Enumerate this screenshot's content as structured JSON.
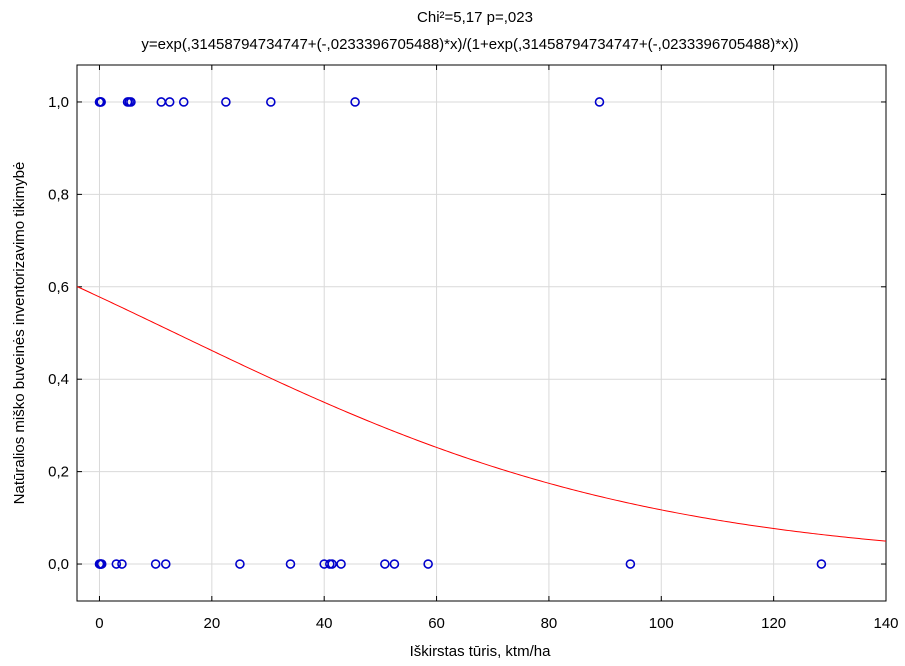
{
  "chart_data": {
    "type": "scatter",
    "title": "Chi²=5,17 p=,023",
    "subtitle": "y=exp(,31458794734747+(-,0233396705488)*x)/(1+exp(,31458794734747+(-,0233396705488)*x))",
    "xlabel": "Iškirstas tūris, ktm/ha",
    "ylabel": "Natūralios miško buveinės inventorizavimo tikimybė",
    "xlim": [
      -4,
      140
    ],
    "ylim": [
      -0.08,
      1.08
    ],
    "x_ticks": [
      0,
      20,
      40,
      60,
      80,
      100,
      120,
      140
    ],
    "x_tick_labels": [
      "0",
      "20",
      "40",
      "60",
      "80",
      "100",
      "120",
      "140"
    ],
    "y_ticks": [
      0.0,
      0.2,
      0.4,
      0.6,
      0.8,
      1.0
    ],
    "y_tick_labels": [
      "0,0",
      "0,2",
      "0,4",
      "0,6",
      "0,8",
      "1,0"
    ],
    "grid": true,
    "marker_color": "#0000cc",
    "curve_color": "#ff0000",
    "fit": {
      "intercept": 0.31458794734747,
      "slope": -0.0233396705488
    },
    "points_y1": [
      0,
      0.1,
      0.2,
      0.3,
      5,
      5.3,
      5.6,
      11,
      12.5,
      15,
      22.5,
      30.5,
      45.5,
      89
    ],
    "points_y0": [
      0,
      0.1,
      0.2,
      0.3,
      0.4,
      3,
      4,
      10,
      11.8,
      25,
      34,
      40,
      41,
      41.4,
      43,
      50.8,
      52.5,
      58.5,
      94.5,
      128.5
    ]
  }
}
